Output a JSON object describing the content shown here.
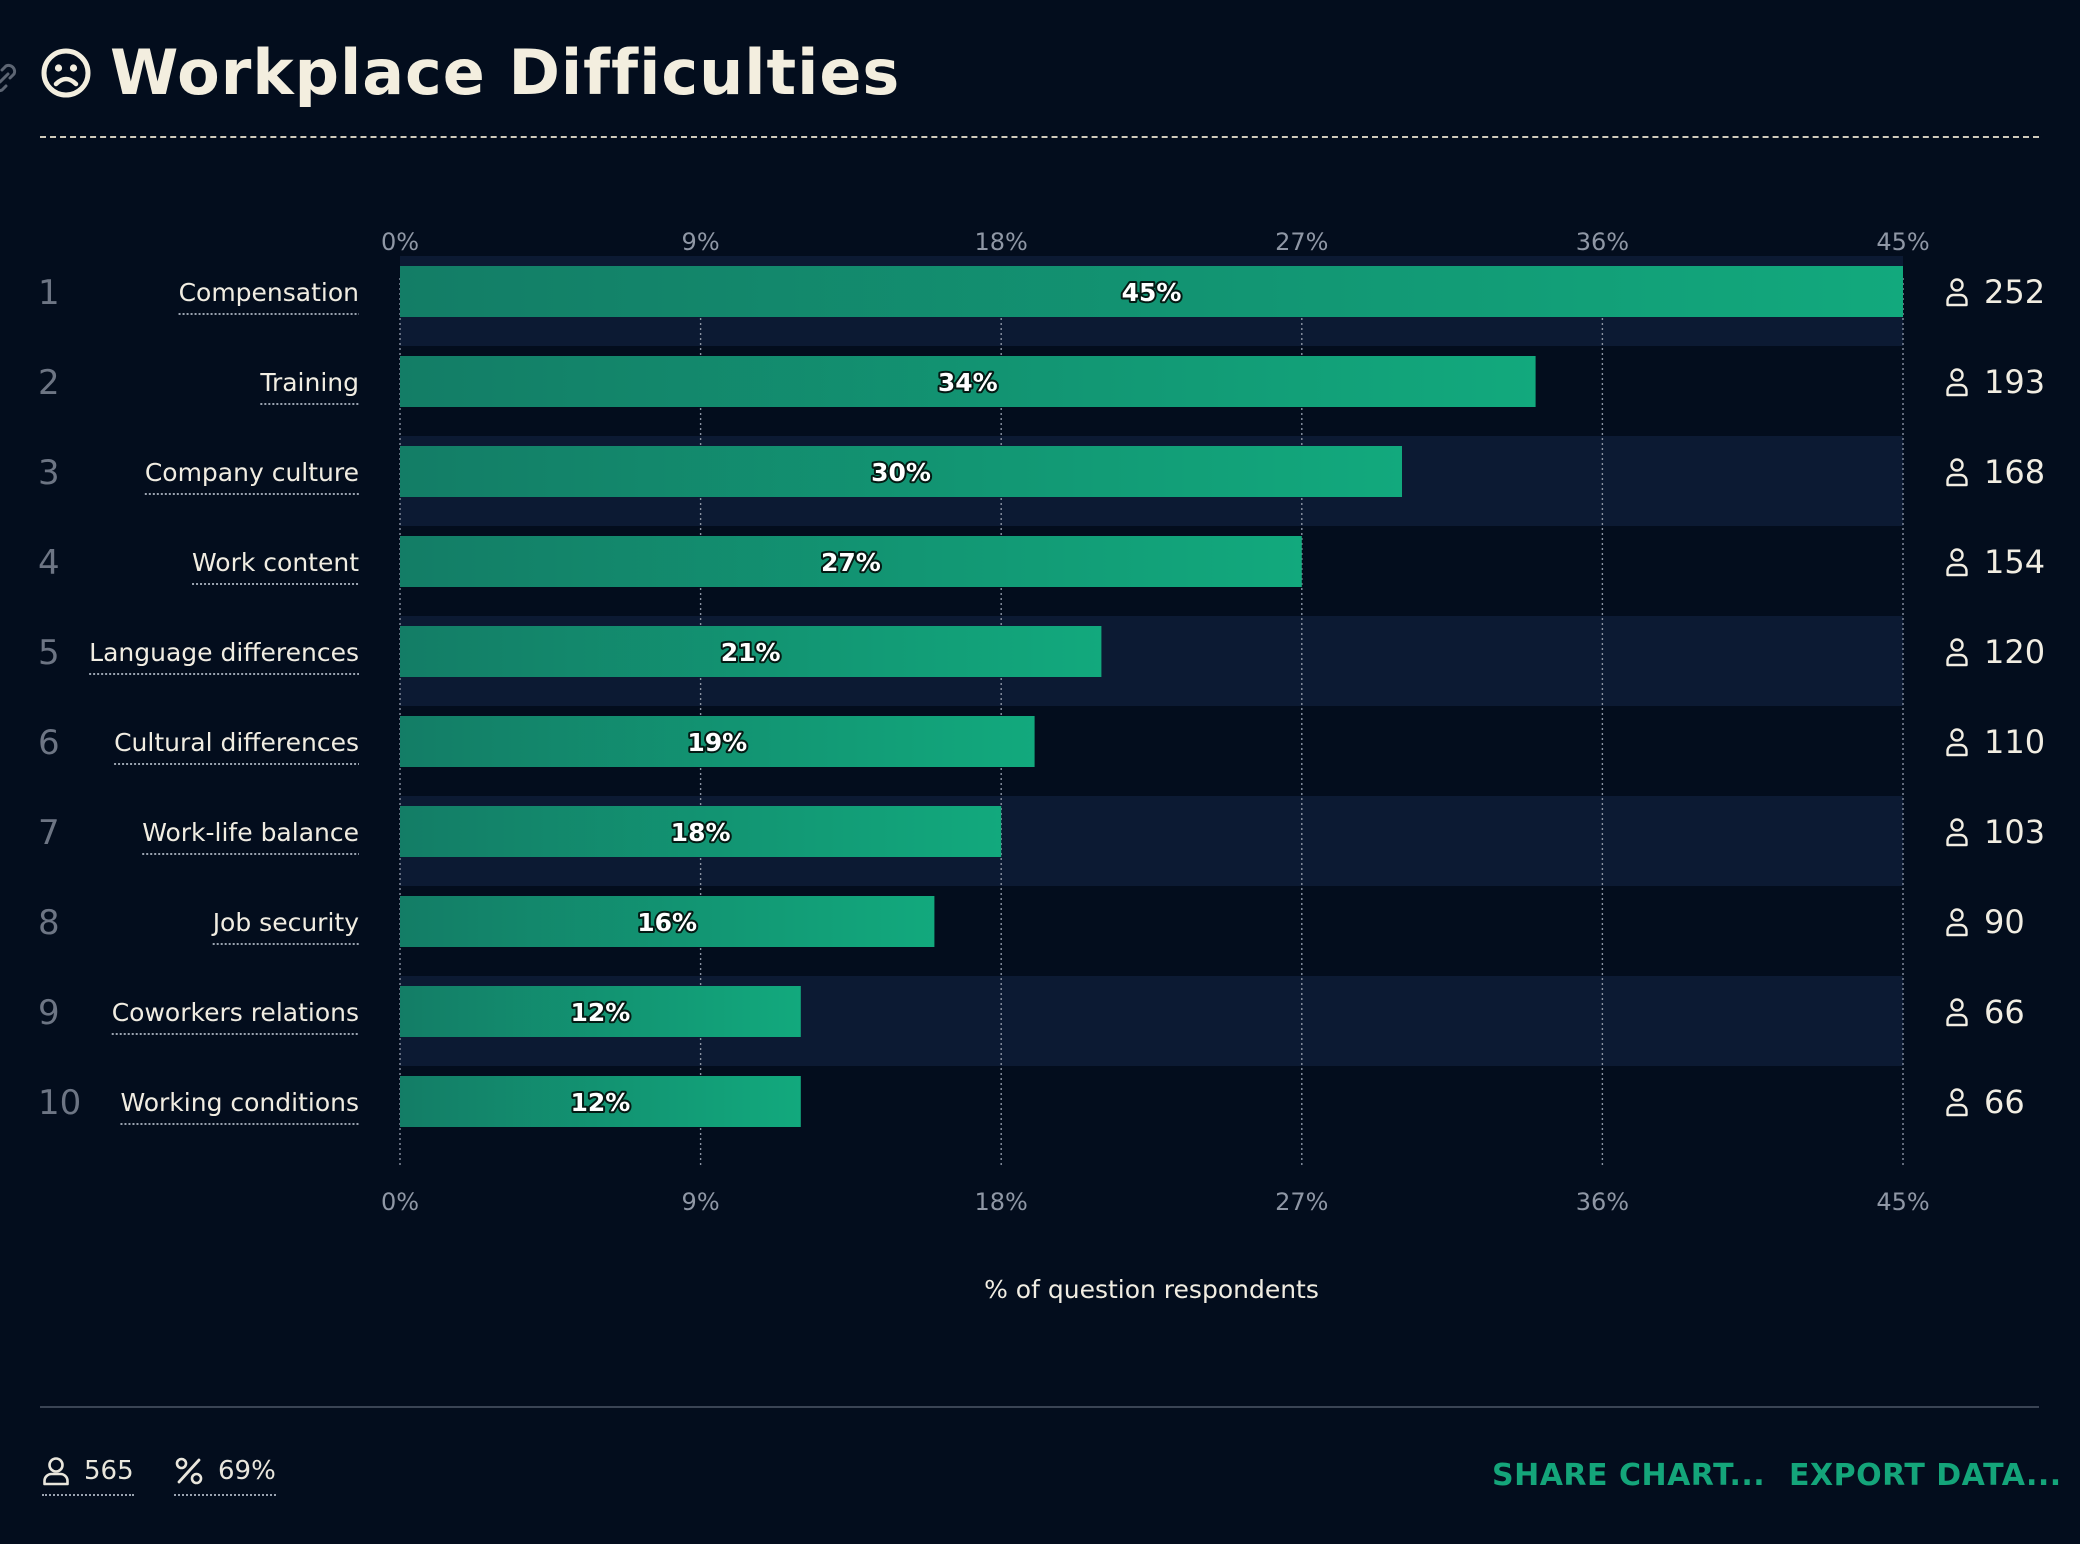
{
  "header": {
    "title": "Workplace Difficulties"
  },
  "chart_data": {
    "type": "bar",
    "orientation": "horizontal",
    "xlabel": "% of question respondents",
    "xlim": [
      0,
      45
    ],
    "xticks": [
      "0%",
      "9%",
      "18%",
      "27%",
      "36%",
      "45%"
    ],
    "grid": true,
    "bar_gradient": [
      "#137d66",
      "#12a97d"
    ],
    "categories": [
      "Compensation",
      "Training",
      "Company culture",
      "Work content",
      "Language differences",
      "Cultural differences",
      "Work-life balance",
      "Job security",
      "Coworkers relations",
      "Working conditions"
    ],
    "ranks": [
      "1",
      "2",
      "3",
      "4",
      "5",
      "6",
      "7",
      "8",
      "9",
      "10"
    ],
    "values": [
      45,
      34,
      30,
      27,
      21,
      19,
      18,
      16,
      12,
      12
    ],
    "value_labels": [
      "45%",
      "34%",
      "30%",
      "27%",
      "21%",
      "19%",
      "18%",
      "16%",
      "12%",
      "12%"
    ],
    "counts": [
      "252",
      "193",
      "168",
      "154",
      "120",
      "110",
      "103",
      "90",
      "66",
      "66"
    ]
  },
  "footer": {
    "respondents": "565",
    "percent": "69%",
    "share_label": "SHARE CHART...",
    "export_label": "EXPORT DATA..."
  },
  "colors": {
    "background": "#030d1d",
    "accent": "#14a57a",
    "stripe": "#0c1a33"
  }
}
